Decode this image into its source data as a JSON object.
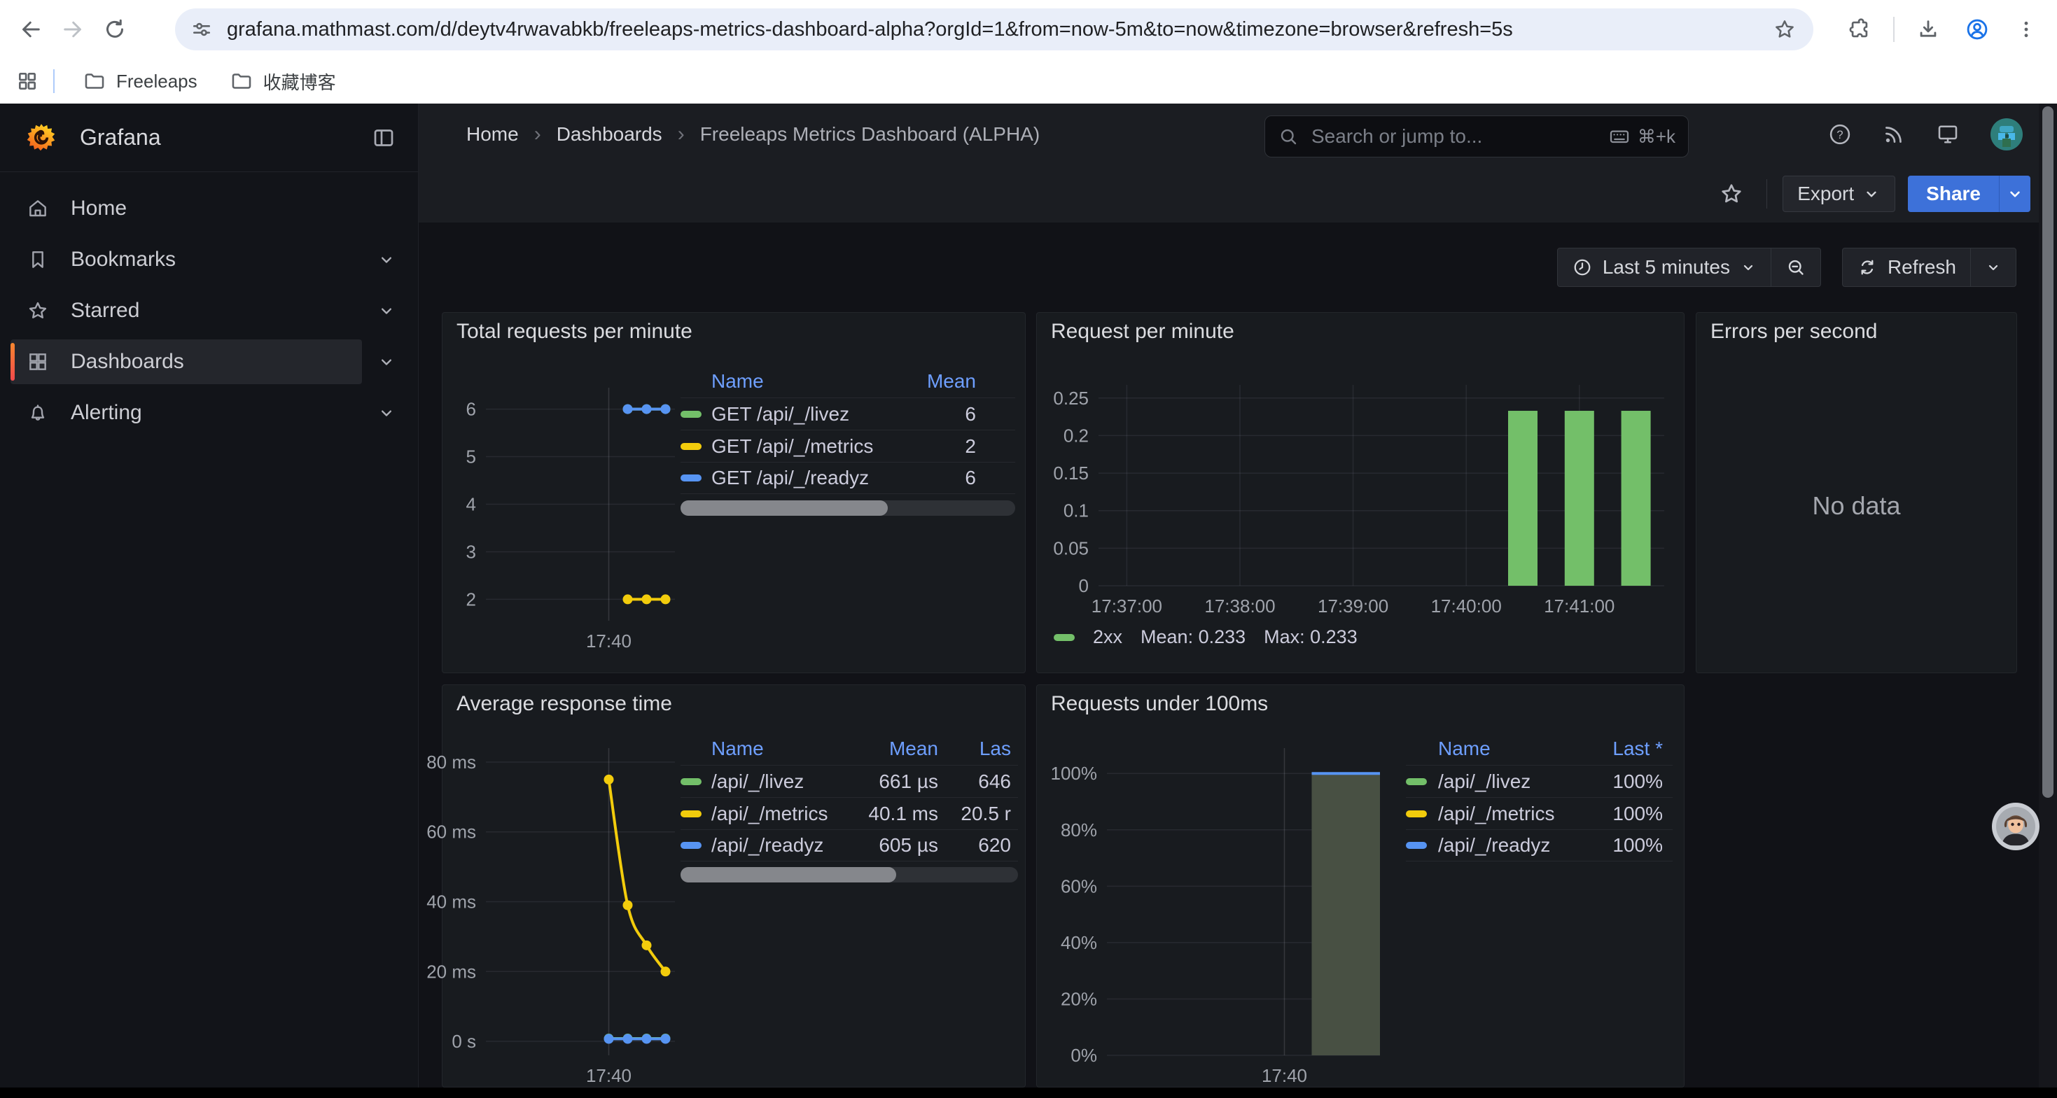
{
  "browser": {
    "url": "grafana.mathmast.com/d/deytv4rwavabkb/freeleaps-metrics-dashboard-alpha?orgId=1&from=now-5m&to=now&timezone=browser&refresh=5s",
    "bookmarks": [
      "Freeleaps",
      "收藏博客"
    ]
  },
  "sidebar": {
    "brand": "Grafana",
    "items": [
      {
        "icon": "home",
        "label": "Home",
        "chevron": false,
        "active": false
      },
      {
        "icon": "bookmark",
        "label": "Bookmarks",
        "chevron": true,
        "active": false
      },
      {
        "icon": "star",
        "label": "Starred",
        "chevron": true,
        "active": false
      },
      {
        "icon": "grid",
        "label": "Dashboards",
        "chevron": true,
        "active": true
      },
      {
        "icon": "bell",
        "label": "Alerting",
        "chevron": true,
        "active": false
      }
    ]
  },
  "header": {
    "breadcrumbs": [
      "Home",
      "Dashboards",
      "Freeleaps Metrics Dashboard (ALPHA)"
    ],
    "search_placeholder": "Search or jump to...",
    "search_shortcut": "⌘+k",
    "export_label": "Export",
    "share_label": "Share"
  },
  "toolbar": {
    "time_range_label": "Last 5 minutes",
    "refresh_label": "Refresh"
  },
  "colors": {
    "green": "#73BF69",
    "yellow": "#F2CC0C",
    "blue": "#5794F2",
    "link_blue": "#6E9FFF",
    "share_blue": "#3D71D9",
    "accent_orange": "#F55F3E",
    "area_fill": "#485043"
  },
  "chart_data": [
    {
      "id": "total-requests-per-minute",
      "type": "line",
      "title": "Total requests per minute",
      "ylim": [
        1.55,
        6.45
      ],
      "yticks": [
        {
          "v": 6,
          "label": "6"
        },
        {
          "v": 5,
          "label": "5"
        },
        {
          "v": 4,
          "label": "4"
        },
        {
          "v": 3,
          "label": "3"
        },
        {
          "v": 2,
          "label": "2"
        }
      ],
      "xlim": [
        "17:36:45",
        "17:41:45"
      ],
      "xticks": [
        {
          "t": "17:40:00",
          "label": "17:40",
          "grid": true,
          "strong": true
        }
      ],
      "series": [
        {
          "name": "GET /api/_/livez",
          "color": "#73BF69",
          "points": [
            [
              "17:40:30",
              6
            ],
            [
              "17:41:00",
              6
            ],
            [
              "17:41:30",
              6
            ]
          ]
        },
        {
          "name": "GET /api/_/metrics",
          "color": "#F2CC0C",
          "points": [
            [
              "17:40:30",
              2
            ],
            [
              "17:41:00",
              2
            ],
            [
              "17:41:30",
              2
            ]
          ]
        },
        {
          "name": "GET /api/_/readyz",
          "color": "#5794F2",
          "points": [
            [
              "17:40:30",
              6
            ],
            [
              "17:41:00",
              6
            ],
            [
              "17:41:30",
              6
            ]
          ]
        }
      ],
      "legend_table": {
        "headers": [
          "Name",
          "Mean"
        ],
        "rows": [
          {
            "color": "#73BF69",
            "cells": [
              "GET /api/_/livez",
              "6"
            ]
          },
          {
            "color": "#F2CC0C",
            "cells": [
              "GET /api/_/metrics",
              "2"
            ]
          },
          {
            "color": "#5794F2",
            "cells": [
              "GET /api/_/readyz",
              "6"
            ]
          }
        ]
      }
    },
    {
      "id": "request-per-minute",
      "type": "bar",
      "title": "Request per minute",
      "ylim": [
        0,
        0.2675
      ],
      "yticks": [
        {
          "v": 0.25,
          "label": "0.25"
        },
        {
          "v": 0.2,
          "label": "0.2"
        },
        {
          "v": 0.15,
          "label": "0.15"
        },
        {
          "v": 0.1,
          "label": "0.1"
        },
        {
          "v": 0.05,
          "label": "0.05"
        },
        {
          "v": 0,
          "label": "0"
        }
      ],
      "xlim": [
        "17:36:45",
        "17:41:45"
      ],
      "xticks": [
        {
          "t": "17:37:00",
          "label": "17:37:00",
          "grid": true
        },
        {
          "t": "17:38:00",
          "label": "17:38:00",
          "grid": true
        },
        {
          "t": "17:39:00",
          "label": "17:39:00",
          "grid": true
        },
        {
          "t": "17:40:00",
          "label": "17:40:00",
          "grid": true
        },
        {
          "t": "17:41:00",
          "label": "17:41:00",
          "grid": true
        }
      ],
      "series": [
        {
          "name": "2xx",
          "color": "#73BF69",
          "points": [
            [
              "17:40:30",
              0.233
            ],
            [
              "17:41:00",
              0.233
            ],
            [
              "17:41:30",
              0.233
            ]
          ]
        }
      ],
      "legend": {
        "name": "2xx",
        "stats": [
          "Mean: 0.233",
          "Max: 0.233"
        ]
      }
    },
    {
      "id": "errors-per-second",
      "type": "none",
      "title": "Errors per second",
      "message": "No data"
    },
    {
      "id": "average-response-time",
      "type": "line",
      "title": "Average response time",
      "ylim": [
        -4,
        84
      ],
      "yticks": [
        {
          "v": 80,
          "label": "80 ms"
        },
        {
          "v": 60,
          "label": "60 ms"
        },
        {
          "v": 40,
          "label": "40 ms"
        },
        {
          "v": 20,
          "label": "20 ms"
        },
        {
          "v": 0,
          "label": "0 s"
        }
      ],
      "xlim": [
        "17:36:45",
        "17:41:45"
      ],
      "xticks": [
        {
          "t": "17:40:00",
          "label": "17:40",
          "grid": true,
          "strong": true
        }
      ],
      "series": [
        {
          "name": "/api/_/livez",
          "color": "#73BF69",
          "points": [
            [
              "17:40:00",
              0.8
            ],
            [
              "17:40:30",
              0.8
            ],
            [
              "17:41:00",
              0.8
            ],
            [
              "17:41:30",
              0.8
            ]
          ]
        },
        {
          "name": "/api/_/metrics",
          "color": "#F2CC0C",
          "smooth": true,
          "points": [
            [
              "17:40:00",
              75
            ],
            [
              "17:40:30",
              39
            ],
            [
              "17:41:00",
              27.5
            ],
            [
              "17:41:30",
              20
            ]
          ]
        },
        {
          "name": "/api/_/readyz",
          "color": "#5794F2",
          "points": [
            [
              "17:40:00",
              0.7
            ],
            [
              "17:40:30",
              0.7
            ],
            [
              "17:41:00",
              0.7
            ],
            [
              "17:41:30",
              0.7
            ]
          ]
        }
      ],
      "legend_table": {
        "headers": [
          "Name",
          "Mean",
          "Las"
        ],
        "rows": [
          {
            "color": "#73BF69",
            "cells": [
              "/api/_/livez",
              "661 µs",
              "646"
            ]
          },
          {
            "color": "#F2CC0C",
            "cells": [
              "/api/_/metrics",
              "40.1 ms",
              "20.5 r"
            ]
          },
          {
            "color": "#5794F2",
            "cells": [
              "/api/_/readyz",
              "605 µs",
              "620"
            ]
          }
        ]
      }
    },
    {
      "id": "requests-under-100ms",
      "type": "area",
      "title": "Requests under 100ms",
      "ylim": [
        0,
        109
      ],
      "yticks": [
        {
          "v": 100,
          "label": "100%"
        },
        {
          "v": 80,
          "label": "80%"
        },
        {
          "v": 60,
          "label": "60%"
        },
        {
          "v": 40,
          "label": "40%"
        },
        {
          "v": 20,
          "label": "20%"
        },
        {
          "v": 0,
          "label": "0%"
        }
      ],
      "xlim": [
        "17:36:45",
        "17:41:45"
      ],
      "xticks": [
        {
          "t": "17:40:00",
          "label": "17:40",
          "grid": true,
          "strong": true
        }
      ],
      "series": [
        {
          "name": "/api/_/readyz",
          "type": "area",
          "color": "#5794F2",
          "fill": "#485043",
          "points": [
            [
              "17:40:30",
              100
            ],
            [
              "17:41:45",
              100
            ]
          ]
        }
      ],
      "legend_table": {
        "headers": [
          "Name",
          "Last *"
        ],
        "rows": [
          {
            "color": "#73BF69",
            "cells": [
              "/api/_/livez",
              "100%"
            ]
          },
          {
            "color": "#F2CC0C",
            "cells": [
              "/api/_/metrics",
              "100%"
            ]
          },
          {
            "color": "#5794F2",
            "cells": [
              "/api/_/readyz",
              "100%"
            ]
          }
        ]
      }
    }
  ]
}
